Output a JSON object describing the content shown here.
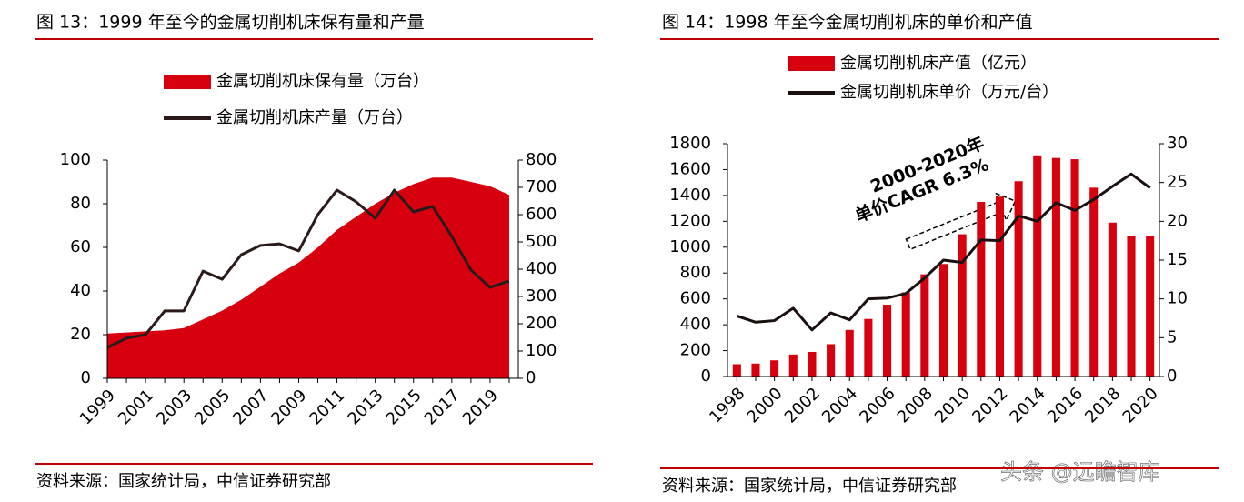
{
  "chart_data": [
    {
      "type": "combo",
      "title": "图 13：1999 年至今的金属切削机床保有量和产量",
      "source": "资料来源：国家统计局，中信证券研究部",
      "categories": [
        "1999",
        null,
        "2001",
        null,
        "2003",
        null,
        "2005",
        null,
        "2007",
        null,
        "2009",
        null,
        "2011",
        null,
        "2013",
        null,
        "2015",
        null,
        "2017",
        null,
        "2019",
        null
      ],
      "series": [
        {
          "name": "金属切削机床保有量（万台）",
          "type": "area",
          "color": "#d7000f",
          "values": [
            20.5,
            21,
            21.5,
            22,
            23,
            27,
            31,
            36,
            42,
            48,
            53,
            60,
            68,
            74,
            80,
            85,
            89,
            92,
            92,
            90,
            88,
            84
          ]
        },
        {
          "name": "金属切削机床产量（万台）",
          "type": "line",
          "axis": "y2",
          "color": "#2a1a1a",
          "values": [
            113,
            147,
            160,
            247,
            247,
            393,
            363,
            453,
            487,
            493,
            467,
            600,
            690,
            647,
            587,
            690,
            610,
            630,
            520,
            397,
            333,
            357
          ]
        }
      ],
      "ylim": [
        0,
        100
      ],
      "yticks": [
        0,
        20,
        40,
        60,
        80,
        100
      ],
      "y2lim": [
        0,
        800
      ],
      "y2ticks": [
        0,
        100,
        200,
        300,
        400,
        500,
        600,
        700,
        800
      ]
    },
    {
      "type": "combo",
      "title": "图 14：1998 年至今金属切削机床的单价和产值",
      "source": "资料来源：国家统计局，中信证券研究部",
      "categories": [
        "1998",
        null,
        "2000",
        null,
        "2002",
        null,
        "2004",
        null,
        "2006",
        null,
        "2008",
        null,
        "2010",
        null,
        "2012",
        null,
        "2014",
        null,
        "2016",
        null,
        "2018",
        null,
        "2020"
      ],
      "series": [
        {
          "name": "金属切削机床产值（亿元）",
          "type": "bar",
          "color": "#d7000f",
          "values": [
            95,
            100,
            125,
            170,
            190,
            250,
            360,
            445,
            555,
            650,
            790,
            870,
            1100,
            1350,
            1390,
            1510,
            1710,
            1690,
            1680,
            1460,
            1190,
            1090,
            1090
          ]
        },
        {
          "name": "金属切削机床单价（万元/台）",
          "type": "line",
          "axis": "y2",
          "color": "#1a1010",
          "values": [
            7.8,
            7,
            7.2,
            8.8,
            6,
            8.2,
            7.3,
            10,
            10.1,
            10.7,
            12.7,
            15,
            14.7,
            17.6,
            17.5,
            20.7,
            20,
            22.4,
            21.4,
            22.8,
            24.5,
            26.1,
            24.3
          ]
        }
      ],
      "ylim": [
        0,
        1800
      ],
      "yticks": [
        0,
        200,
        400,
        600,
        800,
        1000,
        1200,
        1400,
        1600,
        1800
      ],
      "y2lim": [
        0,
        30
      ],
      "y2ticks": [
        0,
        5,
        10,
        15,
        20,
        25,
        30
      ],
      "annotations": [
        "2000-2020年",
        "单价CAGR 6.3%"
      ]
    }
  ],
  "watermark": "头条 @远瞻智库"
}
